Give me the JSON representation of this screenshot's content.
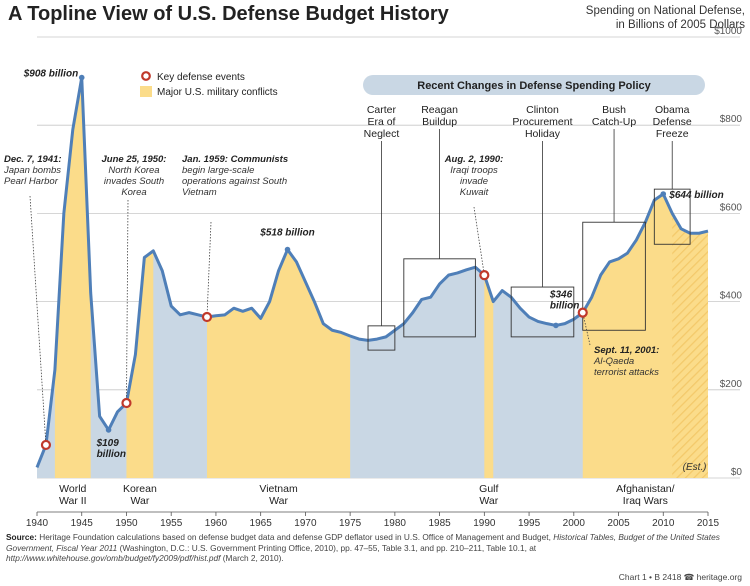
{
  "chart_data": {
    "type": "area",
    "title": "A Topline View of U.S. Defense Budget History",
    "subtitle_lines": [
      "Spending on National Defense,",
      "in Billions of 2005 Dollars"
    ],
    "y_ticks": [
      "$1000",
      "$800",
      "$600",
      "$400",
      "$200",
      "$0"
    ],
    "ylim": [
      0,
      1000
    ],
    "xlim": [
      1940,
      2015
    ],
    "x_ticks": [
      "1940",
      "1945",
      "1950",
      "1955",
      "1960",
      "1965",
      "1970",
      "1975",
      "1980",
      "1985",
      "1990",
      "1995",
      "2000",
      "2005",
      "2010",
      "2015"
    ],
    "series": [
      {
        "name": "Spending on National Defense",
        "x": [
          1940,
          1941,
          1942,
          1943,
          1944,
          1945,
          1946,
          1947,
          1948,
          1949,
          1950,
          1951,
          1952,
          1953,
          1954,
          1955,
          1956,
          1957,
          1958,
          1959,
          1960,
          1961,
          1962,
          1963,
          1964,
          1965,
          1966,
          1967,
          1968,
          1969,
          1970,
          1971,
          1972,
          1973,
          1974,
          1975,
          1976,
          1977,
          1978,
          1979,
          1980,
          1981,
          1982,
          1983,
          1984,
          1985,
          1986,
          1987,
          1988,
          1989,
          1990,
          1991,
          1992,
          1993,
          1994,
          1995,
          1996,
          1997,
          1998,
          1999,
          2000,
          2001,
          2002,
          2003,
          2004,
          2005,
          2006,
          2007,
          2008,
          2009,
          2010,
          2011,
          2012,
          2013,
          2014,
          2015
        ],
        "values": [
          24,
          75,
          245,
          600,
          790,
          908,
          420,
          140,
          109,
          150,
          170,
          280,
          500,
          515,
          470,
          390,
          370,
          375,
          370,
          365,
          368,
          370,
          385,
          378,
          385,
          362,
          400,
          470,
          518,
          490,
          445,
          400,
          350,
          335,
          330,
          322,
          315,
          312,
          315,
          320,
          335,
          350,
          375,
          405,
          410,
          440,
          460,
          465,
          472,
          478,
          460,
          400,
          425,
          410,
          385,
          365,
          355,
          350,
          346,
          350,
          360,
          375,
          410,
          460,
          490,
          497,
          510,
          540,
          580,
          630,
          644,
          600,
          565,
          555,
          555,
          560
        ]
      }
    ],
    "estimate_from": 2011,
    "estimate_label": "(Est.)",
    "conflicts": [
      {
        "name_lines": [
          "World",
          "War II"
        ],
        "start": 1942,
        "end": 1946
      },
      {
        "name_lines": [
          "Korean",
          "War"
        ],
        "start": 1950,
        "end": 1953
      },
      {
        "name_lines": [
          "Vietnam",
          "War"
        ],
        "start": 1959,
        "end": 1975
      },
      {
        "name_lines": [
          "Gulf",
          "War"
        ],
        "start": 1990,
        "end": 1991
      },
      {
        "name_lines": [
          "Afghanistan/",
          "Iraq Wars"
        ],
        "start": 2001,
        "end": 2015
      }
    ],
    "key_events": [
      {
        "year": 1941,
        "value": 75,
        "label_lines": [
          "Dec. 7, 1941:",
          "Japan bombs",
          "Pearl Harbor"
        ]
      },
      {
        "year": 1950,
        "value": 170,
        "label_lines": [
          "June 25, 1950:",
          "North Korea",
          "invades South",
          "Korea"
        ]
      },
      {
        "year": 1959,
        "value": 365,
        "label_lines": [
          "Jan. 1959: Communists",
          "begin large-scale",
          "operations against South",
          "Vietnam"
        ]
      },
      {
        "year": 1990,
        "value": 460,
        "label_lines": [
          "Aug. 2, 1990:",
          "Iraqi troops",
          "invade",
          "Kuwait"
        ]
      },
      {
        "year": 2001,
        "value": 375,
        "label_lines": [
          "Sept. 11, 2001:",
          "Al-Qaeda",
          "terrorist attacks"
        ]
      }
    ],
    "value_labels": [
      {
        "lines": [
          "$908 billion"
        ],
        "year": 1945,
        "value": 908
      },
      {
        "lines": [
          "$109",
          "billion"
        ],
        "year": 1948,
        "value": 109
      },
      {
        "lines": [
          "$518 billion"
        ],
        "year": 1968,
        "value": 518
      },
      {
        "lines": [
          "$346",
          "billion"
        ],
        "year": 1998,
        "value": 346
      },
      {
        "lines": [
          "$644 billion"
        ],
        "year": 2010,
        "value": 644
      }
    ],
    "legend": {
      "events_label": "Key defense events",
      "conflicts_label": "Major U.S. military conflicts",
      "placement": "top-left"
    },
    "policy_banner": "Recent Changes in Defense Spending Policy",
    "policy_periods": [
      {
        "name_lines": [
          "Carter",
          "Era of",
          "Neglect"
        ],
        "start": 1977,
        "end": 1980,
        "low": 290,
        "high": 345
      },
      {
        "name_lines": [
          "Reagan",
          "Buildup"
        ],
        "start": 1981,
        "end": 1989,
        "low": 320,
        "high": 497
      },
      {
        "name_lines": [
          "Clinton",
          "Procurement",
          "Holiday"
        ],
        "start": 1993,
        "end": 2000,
        "low": 320,
        "high": 433
      },
      {
        "name_lines": [
          "Bush",
          "Catch-Up"
        ],
        "start": 2001,
        "end": 2008,
        "low": 335,
        "high": 580
      },
      {
        "name_lines": [
          "Obama",
          "Defense",
          "Freeze"
        ],
        "start": 2009,
        "end": 2013,
        "low": 530,
        "high": 655
      }
    ],
    "colors": {
      "line": "#4f7fb8",
      "peace_fill": "#c9d7e4",
      "conflict_fill": "#fbdc8a",
      "event_marker": "#c0392b",
      "banner": "#c9d7e4",
      "grid": "#c8c8c8"
    }
  },
  "source": {
    "label": "Source:",
    "text_a": "Heritage Foundation calculations based on defense budget data and defense GDP deflator used in U.S. Office of Management and Budget,",
    "text_italic_a": "Historical Tables, Budget of the United States Government, Fiscal Year 2011",
    "text_b": "(Washington, D.C.: U.S. Government Printing Office, 2010), pp. 47–55, Table 3.1, and pp. 210–211, Table 10.1, at",
    "url": "http://www.whitehouse.gov/omb/budget/fy2009/pdf/hist.pdf",
    "text_c": "(March 2, 2010)."
  },
  "credit": "Chart 1 • B 2418  ☎ heritage.org"
}
